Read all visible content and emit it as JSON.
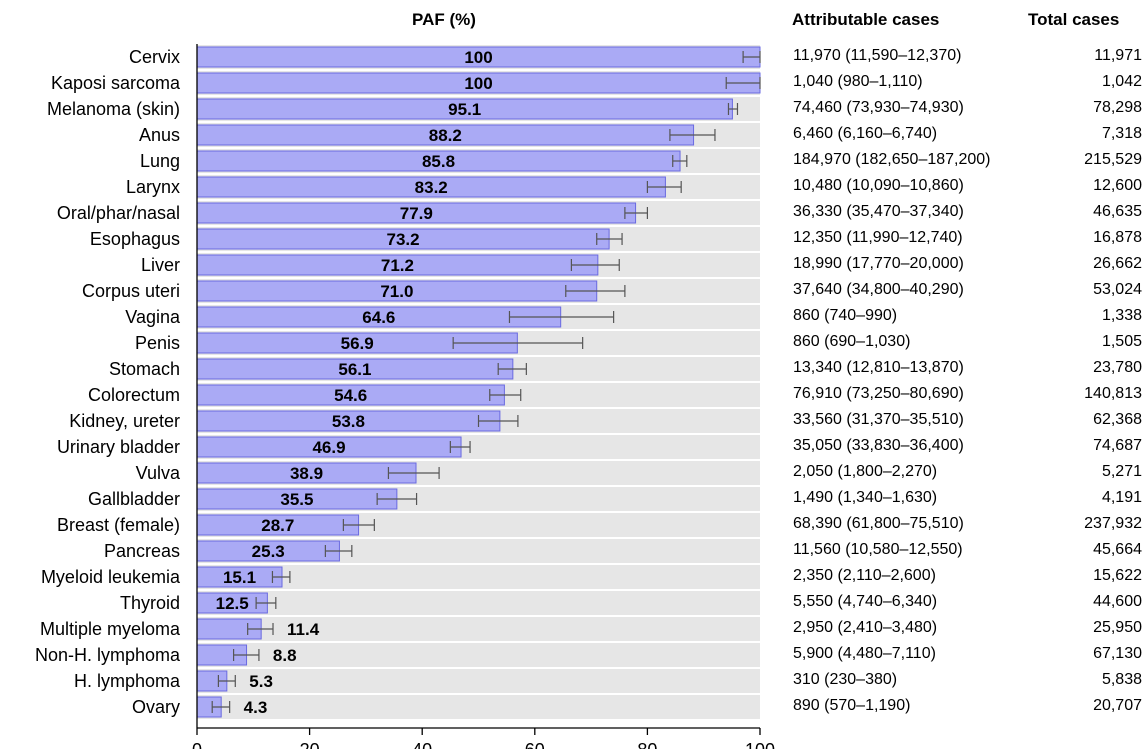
{
  "headers": {
    "paf": "PAF (%)",
    "attributable": "Attributable cases",
    "total": "Total cases"
  },
  "colors": {
    "bar_fill": "#aaaaf5",
    "bar_stroke": "#6a6ae0",
    "row_band": "#e6e6e6",
    "error_bar": "#555555"
  },
  "chart_data": {
    "type": "bar",
    "orientation": "horizontal",
    "xlim": [
      0,
      100
    ],
    "xticks": [
      0,
      20,
      40,
      60,
      80,
      100
    ],
    "categories": [
      "Cervix",
      "Kaposi sarcoma",
      "Melanoma (skin)",
      "Anus",
      "Lung",
      "Larynx",
      "Oral/phar/nasal",
      "Esophagus",
      "Liver",
      "Corpus uteri",
      "Vagina",
      "Penis",
      "Stomach",
      "Colorectum",
      "Kidney, ureter",
      "Urinary bladder",
      "Vulva",
      "Gallbladder",
      "Breast (female)",
      "Pancreas",
      "Myeloid leukemia",
      "Thyroid",
      "Multiple myeloma",
      "Non-H. lymphoma",
      "H. lymphoma",
      "Ovary"
    ],
    "values": [
      100,
      100,
      95.1,
      88.2,
      85.8,
      83.2,
      77.9,
      73.2,
      71.2,
      71.0,
      64.6,
      56.9,
      56.1,
      54.6,
      53.8,
      46.9,
      38.9,
      35.5,
      28.7,
      25.3,
      15.1,
      12.5,
      11.4,
      8.8,
      5.3,
      4.3
    ],
    "value_labels": [
      "100",
      "100",
      "95.1",
      "88.2",
      "85.8",
      "83.2",
      "77.9",
      "73.2",
      "71.2",
      "71.0",
      "64.6",
      "56.9",
      "56.1",
      "54.6",
      "53.8",
      "46.9",
      "38.9",
      "35.5",
      "28.7",
      "25.3",
      "15.1",
      "12.5",
      "11.4",
      "8.8",
      "5.3",
      "4.3"
    ],
    "ci_low": [
      97,
      94,
      94.4,
      84,
      84.5,
      80,
      76,
      71,
      66.5,
      65.5,
      55.5,
      45.5,
      53.5,
      52,
      50,
      45,
      34,
      32,
      26,
      22.8,
      13.4,
      10.5,
      9,
      6.5,
      3.8,
      2.7
    ],
    "ci_high": [
      100,
      100,
      96,
      92,
      87,
      86,
      80,
      75.5,
      75,
      76,
      74,
      68.5,
      58.5,
      57.5,
      57,
      48.5,
      43,
      39,
      31.5,
      27.5,
      16.5,
      14,
      13.5,
      11,
      6.8,
      5.8
    ],
    "grid": false
  },
  "table": {
    "rows": [
      {
        "attributable": "11,970 (11,590–12,370)",
        "total": "11,971"
      },
      {
        "attributable": "1,040 (980–1,110)",
        "total": "1,042"
      },
      {
        "attributable": "74,460 (73,930–74,930)",
        "total": "78,298"
      },
      {
        "attributable": "6,460 (6,160–6,740)",
        "total": "7,318"
      },
      {
        "attributable": "184,970 (182,650–187,200)",
        "total": "215,529"
      },
      {
        "attributable": "10,480 (10,090–10,860)",
        "total": "12,600"
      },
      {
        "attributable": "36,330 (35,470–37,340)",
        "total": "46,635"
      },
      {
        "attributable": "12,350 (11,990–12,740)",
        "total": "16,878"
      },
      {
        "attributable": "18,990 (17,770–20,000)",
        "total": "26,662"
      },
      {
        "attributable": "37,640 (34,800–40,290)",
        "total": "53,024"
      },
      {
        "attributable": "860 (740–990)",
        "total": "1,338"
      },
      {
        "attributable": "860 (690–1,030)",
        "total": "1,505"
      },
      {
        "attributable": "13,340 (12,810–13,870)",
        "total": "23,780"
      },
      {
        "attributable": "76,910 (73,250–80,690)",
        "total": "140,813"
      },
      {
        "attributable": "33,560 (31,370–35,510)",
        "total": "62,368"
      },
      {
        "attributable": "35,050 (33,830–36,400)",
        "total": "74,687"
      },
      {
        "attributable": "2,050 (1,800–2,270)",
        "total": "5,271"
      },
      {
        "attributable": "1,490 (1,340–1,630)",
        "total": "4,191"
      },
      {
        "attributable": "68,390 (61,800–75,510)",
        "total": "237,932"
      },
      {
        "attributable": "11,560 (10,580–12,550)",
        "total": "45,664"
      },
      {
        "attributable": "2,350 (2,110–2,600)",
        "total": "15,622"
      },
      {
        "attributable": "5,550 (4,740–6,340)",
        "total": "44,600"
      },
      {
        "attributable": "2,950 (2,410–3,480)",
        "total": "25,950"
      },
      {
        "attributable": "5,900 (4,480–7,110)",
        "total": "67,130"
      },
      {
        "attributable": "310 (230–380)",
        "total": "5,838"
      },
      {
        "attributable": "890 (570–1,190)",
        "total": "20,707"
      }
    ]
  }
}
